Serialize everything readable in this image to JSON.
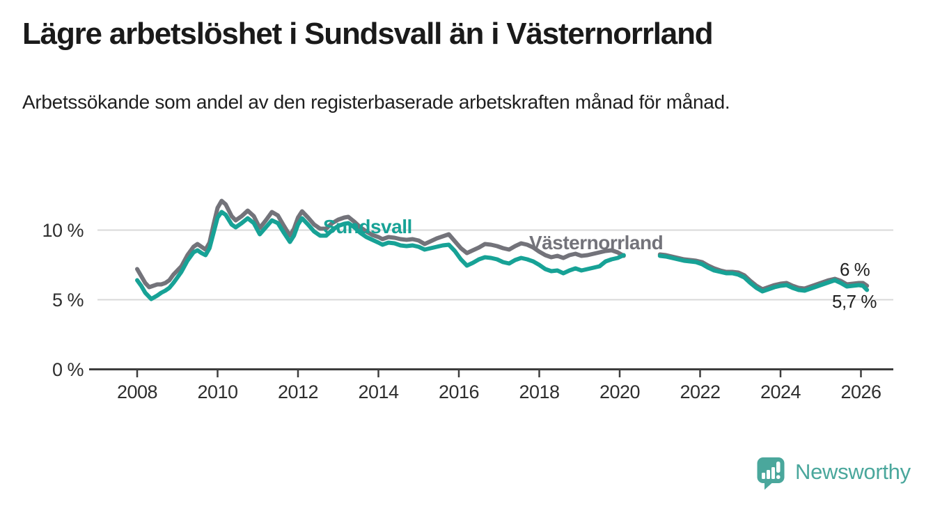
{
  "header": {
    "title": "Lägre arbetslöshet i Sundsvall än i Västernorrland",
    "subtitle": "Arbetssökande som andel av den registerbaserade arbetskraften månad för månad."
  },
  "footer": {
    "brand": "Newsworthy",
    "brand_color": "#4aa79c"
  },
  "chart_data": {
    "type": "line",
    "title": "Lägre arbetslöshet i Sundsvall än i Västernorrland",
    "xlabel": "",
    "ylabel": "",
    "x_range": [
      2007.6,
      2026.8
    ],
    "ylim": [
      0,
      13.2
    ],
    "grid": "horizontal, at 5 and 10 only",
    "legend_position": "inline labels on lines",
    "data_gap": "no data drawn between 2020.2 and 2021.0",
    "x_axis": {
      "tick_years": [
        2008,
        2010,
        2012,
        2014,
        2016,
        2018,
        2020,
        2022,
        2024,
        2026
      ],
      "tick_labels": [
        "2008",
        "2010",
        "2012",
        "2014",
        "2016",
        "2018",
        "2020",
        "2022",
        "2024",
        "2026"
      ]
    },
    "y_axis": {
      "ticks": [
        {
          "value": 0,
          "label": "0 %"
        },
        {
          "value": 5,
          "label": "5 %"
        },
        {
          "value": 10,
          "label": "10 %"
        }
      ]
    },
    "series": [
      {
        "name": "Västernorrland",
        "color": "#73737a",
        "end_label": "6 %",
        "end_value": 6.0,
        "segments": [
          [
            [
              2008.0,
              7.2
            ],
            [
              2008.1,
              6.7
            ],
            [
              2008.2,
              6.2
            ],
            [
              2008.3,
              5.9
            ],
            [
              2008.4,
              6.0
            ],
            [
              2008.5,
              6.1
            ],
            [
              2008.6,
              6.1
            ],
            [
              2008.7,
              6.2
            ],
            [
              2008.8,
              6.4
            ],
            [
              2008.9,
              6.8
            ],
            [
              2009.0,
              7.1
            ],
            [
              2009.1,
              7.4
            ],
            [
              2009.25,
              8.2
            ],
            [
              2009.4,
              8.8
            ],
            [
              2009.5,
              9.0
            ],
            [
              2009.6,
              8.8
            ],
            [
              2009.7,
              8.6
            ],
            [
              2009.8,
              9.1
            ],
            [
              2009.9,
              10.4
            ],
            [
              2010.0,
              11.6
            ],
            [
              2010.1,
              12.1
            ],
            [
              2010.2,
              11.85
            ],
            [
              2010.35,
              11.0
            ],
            [
              2010.45,
              10.7
            ],
            [
              2010.6,
              11.0
            ],
            [
              2010.75,
              11.4
            ],
            [
              2010.9,
              11.0
            ],
            [
              2011.05,
              10.15
            ],
            [
              2011.2,
              10.7
            ],
            [
              2011.35,
              11.3
            ],
            [
              2011.5,
              11.05
            ],
            [
              2011.65,
              10.3
            ],
            [
              2011.8,
              9.6
            ],
            [
              2011.9,
              10.1
            ],
            [
              2012.0,
              10.9
            ],
            [
              2012.1,
              11.35
            ],
            [
              2012.25,
              10.9
            ],
            [
              2012.4,
              10.4
            ],
            [
              2012.55,
              10.1
            ],
            [
              2012.7,
              10.1
            ],
            [
              2012.85,
              10.5
            ],
            [
              2013.0,
              10.75
            ],
            [
              2013.15,
              10.9
            ],
            [
              2013.25,
              10.95
            ],
            [
              2013.4,
              10.6
            ],
            [
              2013.55,
              10.2
            ],
            [
              2013.7,
              9.9
            ],
            [
              2013.85,
              9.65
            ],
            [
              2014.0,
              9.5
            ],
            [
              2014.1,
              9.35
            ],
            [
              2014.25,
              9.5
            ],
            [
              2014.4,
              9.45
            ],
            [
              2014.55,
              9.35
            ],
            [
              2014.7,
              9.3
            ],
            [
              2014.85,
              9.35
            ],
            [
              2015.0,
              9.25
            ],
            [
              2015.15,
              9.0
            ],
            [
              2015.3,
              9.2
            ],
            [
              2015.45,
              9.4
            ],
            [
              2015.6,
              9.55
            ],
            [
              2015.75,
              9.7
            ],
            [
              2015.9,
              9.2
            ],
            [
              2016.05,
              8.7
            ],
            [
              2016.2,
              8.35
            ],
            [
              2016.35,
              8.55
            ],
            [
              2016.5,
              8.75
            ],
            [
              2016.65,
              9.0
            ],
            [
              2016.8,
              8.95
            ],
            [
              2016.95,
              8.85
            ],
            [
              2017.1,
              8.7
            ],
            [
              2017.25,
              8.6
            ],
            [
              2017.4,
              8.85
            ],
            [
              2017.55,
              9.05
            ],
            [
              2017.7,
              8.95
            ],
            [
              2017.85,
              8.75
            ],
            [
              2018.0,
              8.45
            ],
            [
              2018.15,
              8.2
            ],
            [
              2018.3,
              8.05
            ],
            [
              2018.45,
              8.15
            ],
            [
              2018.6,
              8.0
            ],
            [
              2018.75,
              8.2
            ],
            [
              2018.9,
              8.3
            ],
            [
              2019.05,
              8.15
            ],
            [
              2019.2,
              8.2
            ],
            [
              2019.35,
              8.3
            ],
            [
              2019.5,
              8.4
            ],
            [
              2019.65,
              8.5
            ],
            [
              2019.8,
              8.55
            ],
            [
              2019.95,
              8.4
            ],
            [
              2020.1,
              8.15
            ]
          ],
          [
            [
              2021.0,
              8.25
            ],
            [
              2021.15,
              8.2
            ],
            [
              2021.3,
              8.1
            ],
            [
              2021.45,
              8.0
            ],
            [
              2021.6,
              7.9
            ],
            [
              2021.75,
              7.85
            ],
            [
              2021.9,
              7.8
            ],
            [
              2022.05,
              7.7
            ],
            [
              2022.2,
              7.45
            ],
            [
              2022.35,
              7.25
            ],
            [
              2022.5,
              7.1
            ],
            [
              2022.65,
              7.0
            ],
            [
              2022.8,
              7.0
            ],
            [
              2022.95,
              6.95
            ],
            [
              2023.1,
              6.75
            ],
            [
              2023.25,
              6.35
            ],
            [
              2023.4,
              6.0
            ],
            [
              2023.55,
              5.75
            ],
            [
              2023.7,
              5.9
            ],
            [
              2023.85,
              6.05
            ],
            [
              2024.0,
              6.15
            ],
            [
              2024.15,
              6.2
            ],
            [
              2024.3,
              6.0
            ],
            [
              2024.45,
              5.85
            ],
            [
              2024.6,
              5.8
            ],
            [
              2024.75,
              5.95
            ],
            [
              2024.9,
              6.1
            ],
            [
              2025.05,
              6.25
            ],
            [
              2025.2,
              6.4
            ],
            [
              2025.35,
              6.5
            ],
            [
              2025.5,
              6.35
            ],
            [
              2025.65,
              6.1
            ],
            [
              2025.8,
              6.15
            ],
            [
              2025.95,
              6.2
            ],
            [
              2026.05,
              6.2
            ],
            [
              2026.15,
              6.0
            ]
          ]
        ]
      },
      {
        "name": "Sundsvall",
        "color": "#17a296",
        "end_label": "5,7 %",
        "end_value": 5.7,
        "segments": [
          [
            [
              2008.0,
              6.4
            ],
            [
              2008.1,
              6.0
            ],
            [
              2008.2,
              5.5
            ],
            [
              2008.35,
              5.05
            ],
            [
              2008.5,
              5.3
            ],
            [
              2008.6,
              5.5
            ],
            [
              2008.7,
              5.65
            ],
            [
              2008.8,
              5.85
            ],
            [
              2008.9,
              6.2
            ],
            [
              2009.0,
              6.6
            ],
            [
              2009.1,
              7.0
            ],
            [
              2009.25,
              7.8
            ],
            [
              2009.4,
              8.4
            ],
            [
              2009.5,
              8.55
            ],
            [
              2009.6,
              8.35
            ],
            [
              2009.7,
              8.2
            ],
            [
              2009.8,
              8.7
            ],
            [
              2009.9,
              9.8
            ],
            [
              2010.0,
              10.9
            ],
            [
              2010.1,
              11.3
            ],
            [
              2010.2,
              11.1
            ],
            [
              2010.35,
              10.4
            ],
            [
              2010.45,
              10.2
            ],
            [
              2010.6,
              10.5
            ],
            [
              2010.75,
              10.85
            ],
            [
              2010.9,
              10.5
            ],
            [
              2011.05,
              9.7
            ],
            [
              2011.2,
              10.2
            ],
            [
              2011.35,
              10.7
            ],
            [
              2011.5,
              10.5
            ],
            [
              2011.65,
              9.8
            ],
            [
              2011.8,
              9.15
            ],
            [
              2011.9,
              9.6
            ],
            [
              2012.0,
              10.4
            ],
            [
              2012.1,
              10.85
            ],
            [
              2012.25,
              10.4
            ],
            [
              2012.4,
              9.9
            ],
            [
              2012.55,
              9.6
            ],
            [
              2012.7,
              9.6
            ],
            [
              2012.85,
              10.0
            ],
            [
              2013.0,
              10.3
            ],
            [
              2013.15,
              10.45
            ],
            [
              2013.25,
              10.5
            ],
            [
              2013.4,
              10.2
            ],
            [
              2013.55,
              9.8
            ],
            [
              2013.7,
              9.5
            ],
            [
              2013.85,
              9.3
            ],
            [
              2014.0,
              9.1
            ],
            [
              2014.1,
              8.95
            ],
            [
              2014.25,
              9.1
            ],
            [
              2014.4,
              9.05
            ],
            [
              2014.55,
              8.9
            ],
            [
              2014.7,
              8.85
            ],
            [
              2014.85,
              8.9
            ],
            [
              2015.0,
              8.8
            ],
            [
              2015.15,
              8.6
            ],
            [
              2015.3,
              8.7
            ],
            [
              2015.45,
              8.8
            ],
            [
              2015.6,
              8.9
            ],
            [
              2015.75,
              8.95
            ],
            [
              2015.9,
              8.5
            ],
            [
              2016.05,
              7.9
            ],
            [
              2016.2,
              7.45
            ],
            [
              2016.35,
              7.65
            ],
            [
              2016.5,
              7.9
            ],
            [
              2016.65,
              8.05
            ],
            [
              2016.8,
              8.0
            ],
            [
              2016.95,
              7.9
            ],
            [
              2017.1,
              7.7
            ],
            [
              2017.25,
              7.6
            ],
            [
              2017.4,
              7.85
            ],
            [
              2017.55,
              8.0
            ],
            [
              2017.7,
              7.9
            ],
            [
              2017.85,
              7.75
            ],
            [
              2018.0,
              7.5
            ],
            [
              2018.15,
              7.2
            ],
            [
              2018.3,
              7.05
            ],
            [
              2018.45,
              7.1
            ],
            [
              2018.6,
              6.9
            ],
            [
              2018.75,
              7.1
            ],
            [
              2018.9,
              7.25
            ],
            [
              2019.05,
              7.1
            ],
            [
              2019.2,
              7.2
            ],
            [
              2019.35,
              7.3
            ],
            [
              2019.5,
              7.4
            ],
            [
              2019.65,
              7.75
            ],
            [
              2019.8,
              7.9
            ],
            [
              2019.95,
              8.0
            ],
            [
              2020.1,
              8.2
            ]
          ],
          [
            [
              2021.0,
              8.15
            ],
            [
              2021.15,
              8.1
            ],
            [
              2021.3,
              8.0
            ],
            [
              2021.45,
              7.9
            ],
            [
              2021.6,
              7.8
            ],
            [
              2021.75,
              7.75
            ],
            [
              2021.9,
              7.7
            ],
            [
              2022.05,
              7.55
            ],
            [
              2022.2,
              7.3
            ],
            [
              2022.35,
              7.1
            ],
            [
              2022.5,
              7.0
            ],
            [
              2022.65,
              6.9
            ],
            [
              2022.8,
              6.9
            ],
            [
              2022.95,
              6.8
            ],
            [
              2023.1,
              6.6
            ],
            [
              2023.25,
              6.2
            ],
            [
              2023.4,
              5.85
            ],
            [
              2023.55,
              5.6
            ],
            [
              2023.7,
              5.75
            ],
            [
              2023.85,
              5.9
            ],
            [
              2024.0,
              6.0
            ],
            [
              2024.15,
              6.05
            ],
            [
              2024.3,
              5.85
            ],
            [
              2024.45,
              5.7
            ],
            [
              2024.6,
              5.65
            ],
            [
              2024.75,
              5.8
            ],
            [
              2024.9,
              5.95
            ],
            [
              2025.05,
              6.1
            ],
            [
              2025.2,
              6.25
            ],
            [
              2025.35,
              6.4
            ],
            [
              2025.5,
              6.2
            ],
            [
              2025.65,
              5.95
            ],
            [
              2025.8,
              6.0
            ],
            [
              2025.95,
              6.05
            ],
            [
              2026.05,
              6.0
            ],
            [
              2026.15,
              5.7
            ]
          ]
        ]
      }
    ],
    "style": {
      "line_width": 6,
      "axis_color": "#3d3d3d",
      "gridline_color": "#d9d9d9",
      "tick_label_color": "#2e2e2e"
    }
  }
}
